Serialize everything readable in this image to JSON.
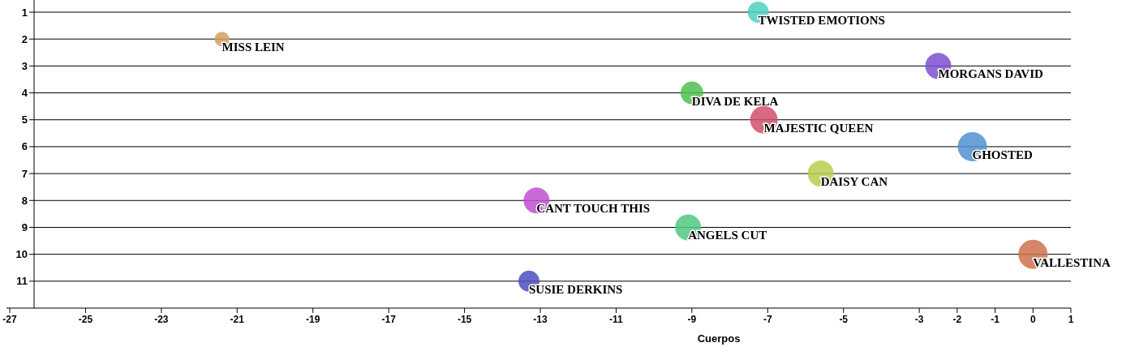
{
  "chart_data": {
    "type": "bubble",
    "xlabel": "Cuerpos",
    "xlim": [
      -27,
      1
    ],
    "xticks": [
      -27,
      -25,
      -23,
      -21,
      -19,
      -17,
      -15,
      -13,
      -11,
      -9,
      -7,
      -5,
      -3,
      -2,
      -1,
      0,
      1
    ],
    "ylim": [
      12,
      1
    ],
    "yticks": [
      1,
      2,
      3,
      4,
      5,
      6,
      7,
      8,
      9,
      10,
      11
    ],
    "grid": "y",
    "series": [
      {
        "name": "TWISTED EMOTIONS",
        "color": "#4fd0c0",
        "x": [
          -7.25
        ],
        "values": [
          1
        ],
        "sizes": [
          0.52
        ]
      },
      {
        "name": "MISS LEIN",
        "color": "#d4a060",
        "x": [
          -21.4
        ],
        "values": [
          2
        ],
        "sizes": [
          0.25
        ]
      },
      {
        "name": "MORGANS DAVID",
        "color": "#7b4fd0",
        "x": [
          -2.5
        ],
        "values": [
          3
        ],
        "sizes": [
          0.79
        ]
      },
      {
        "name": "DIVA DE KELA",
        "color": "#4fc04f",
        "x": [
          -9
        ],
        "values": [
          4
        ],
        "sizes": [
          0.6
        ]
      },
      {
        "name": "MAJESTIC QUEEN",
        "color": "#d0506a",
        "x": [
          -7.1
        ],
        "values": [
          5
        ],
        "sizes": [
          0.89
        ]
      },
      {
        "name": "GHOSTED",
        "color": "#5090d0",
        "x": [
          -1.6
        ],
        "values": [
          6
        ],
        "sizes": [
          1
        ]
      },
      {
        "name": "DAISY CAN",
        "color": "#b8cc4f",
        "x": [
          -5.6
        ],
        "values": [
          7
        ],
        "sizes": [
          0.79
        ]
      },
      {
        "name": "CANT TOUCH THIS",
        "color": "#c050d0",
        "x": [
          -13.1
        ],
        "values": [
          8
        ],
        "sizes": [
          0.79
        ]
      },
      {
        "name": "ANGELS CUT",
        "color": "#50c880",
        "x": [
          -9.1
        ],
        "values": [
          9
        ],
        "sizes": [
          0.79
        ]
      },
      {
        "name": "VALLESTINA",
        "color": "#d0704f",
        "x": [
          0
        ],
        "values": [
          10
        ],
        "sizes": [
          1
        ]
      },
      {
        "name": "SUSIE DERKINS",
        "color": "#4f4fc0",
        "x": [
          -13.3
        ],
        "values": [
          11
        ],
        "sizes": [
          0.52
        ]
      }
    ]
  }
}
